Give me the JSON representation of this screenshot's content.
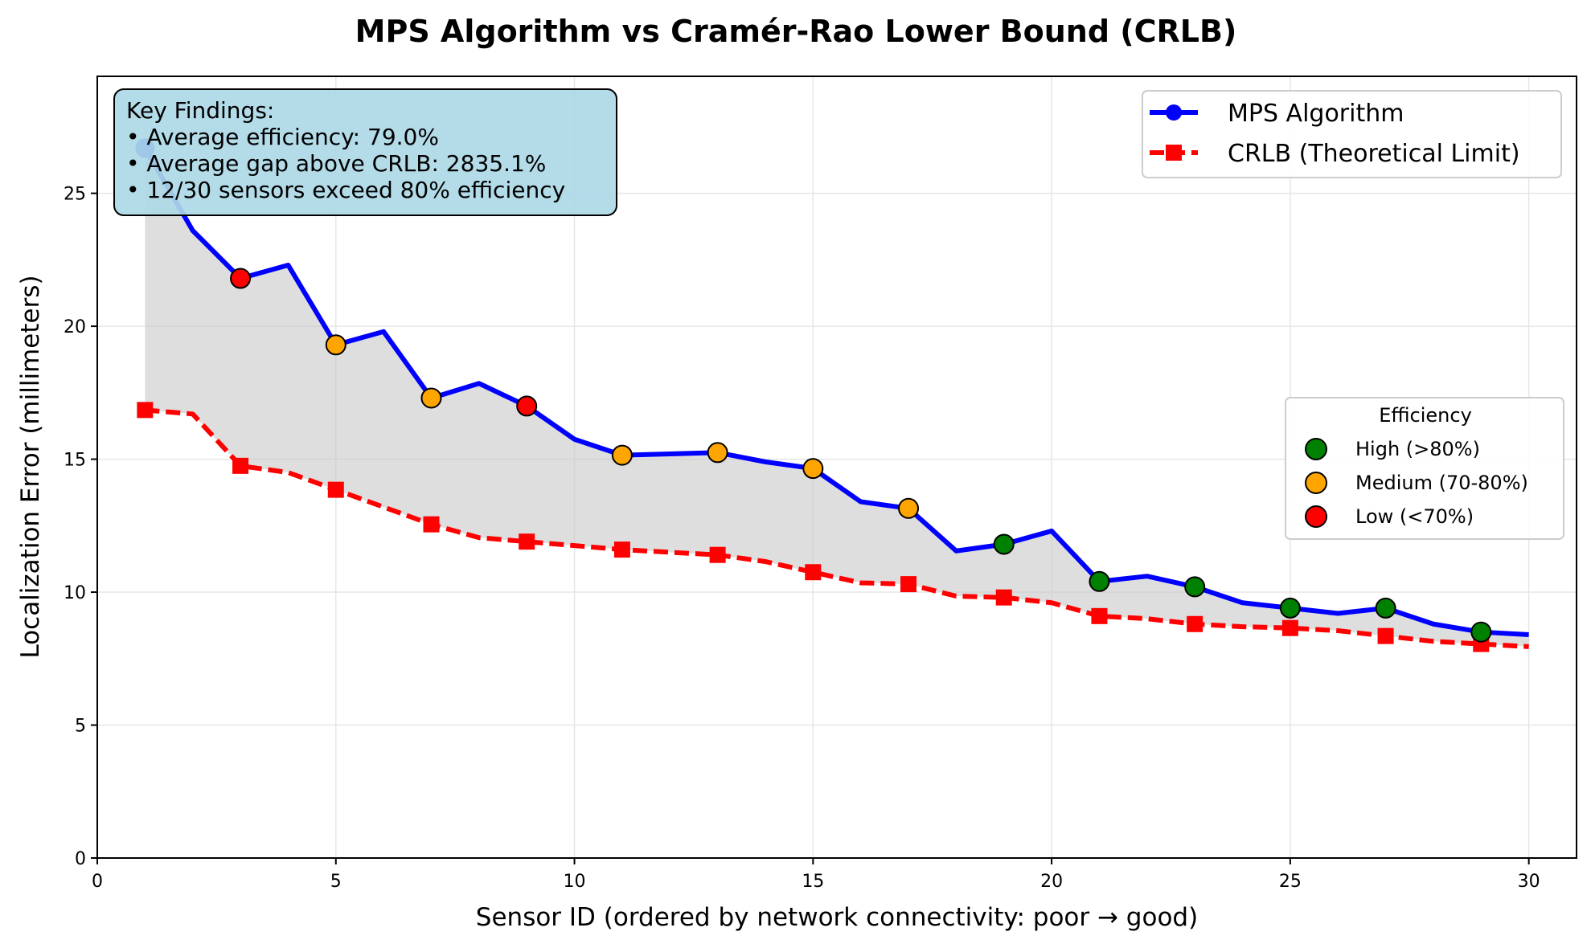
{
  "chart_data": {
    "type": "line",
    "title": "MPS Algorithm vs Cramér-Rao Lower Bound (CRLB)",
    "xlabel": "Sensor ID (ordered by network connectivity: poor → good)",
    "ylabel": "Localization Error (millimeters)",
    "xlim": [
      0,
      31
    ],
    "ylim": [
      0,
      29.4
    ],
    "xticks": [
      0,
      5,
      10,
      15,
      20,
      25,
      30
    ],
    "yticks": [
      0,
      5,
      10,
      15,
      20,
      25
    ],
    "grid": true,
    "x": [
      1,
      2,
      3,
      4,
      5,
      6,
      7,
      8,
      9,
      10,
      11,
      12,
      13,
      14,
      15,
      16,
      17,
      18,
      19,
      20,
      21,
      22,
      23,
      24,
      25,
      26,
      27,
      28,
      29,
      30
    ],
    "series": [
      {
        "name": "MPS Algorithm",
        "color": "#0000ff",
        "style": "solid",
        "marker": "circle",
        "values": [
          26.7,
          23.6,
          21.8,
          22.3,
          19.3,
          19.8,
          17.3,
          17.85,
          17.0,
          15.75,
          15.15,
          15.2,
          15.25,
          14.9,
          14.65,
          13.4,
          13.15,
          11.55,
          11.8,
          12.3,
          10.4,
          10.6,
          10.2,
          9.6,
          9.4,
          9.2,
          9.4,
          8.8,
          8.5,
          8.4
        ]
      },
      {
        "name": "CRLB (Theoretical Limit)",
        "color": "#ff0000",
        "style": "dashed",
        "marker": "square",
        "values": [
          16.85,
          16.7,
          14.75,
          14.5,
          13.85,
          13.2,
          12.55,
          12.05,
          11.9,
          11.75,
          11.6,
          11.5,
          11.4,
          11.15,
          10.75,
          10.35,
          10.3,
          9.85,
          9.8,
          9.6,
          9.1,
          9.0,
          8.8,
          8.7,
          8.65,
          8.55,
          8.35,
          8.15,
          8.05,
          7.95
        ]
      }
    ],
    "efficiency_markers": {
      "x": [
        3,
        5,
        7,
        9,
        11,
        13,
        15,
        17,
        19,
        21,
        23,
        25,
        27,
        29
      ],
      "level": [
        "low",
        "medium",
        "medium",
        "low",
        "medium",
        "medium",
        "medium",
        "medium",
        "high",
        "high",
        "high",
        "high",
        "high",
        "high"
      ]
    },
    "efficiency_legend": {
      "title": "Efficiency",
      "items": [
        {
          "key": "high",
          "label": "High (>80%)",
          "color": "#008000"
        },
        {
          "key": "medium",
          "label": "Medium (70-80%)",
          "color": "#ffa500"
        },
        {
          "key": "low",
          "label": "Low (<70%)",
          "color": "#ff0000"
        }
      ]
    },
    "legend_position": "upper-right",
    "fill_between_color": "#c8c8c8",
    "annotation": {
      "lines": [
        "Key Findings:",
        "• Average efficiency: 79.0%",
        "• Average gap above CRLB: 2835.1%",
        "• 12/30 sensors exceed 80% efficiency"
      ],
      "background": "#add8e6"
    }
  }
}
